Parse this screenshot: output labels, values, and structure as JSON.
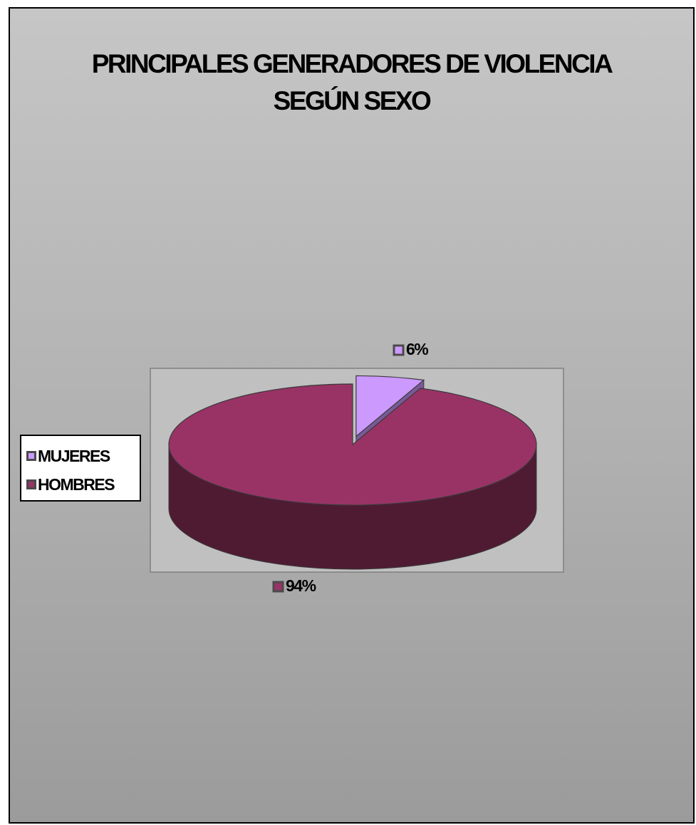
{
  "chart_data": {
    "type": "pie",
    "title_lines": [
      "PRINCIPALES GENERADORES DE VIOLENCIA",
      "SEGÚN SEXO"
    ],
    "three_d": true,
    "exploded_slice": "MUJERES",
    "legend_position": "left",
    "slices": [
      {
        "name": "MUJERES",
        "value": 6,
        "label": "6%",
        "color": "#cc99ff"
      },
      {
        "name": "HOMBRES",
        "value": 94,
        "label": "94%",
        "color": "#993366"
      }
    ]
  },
  "colors": {
    "plot_area": "#c0c0c0",
    "hombres_side": "#4f1b33",
    "mujeres_side": "#7a5a99"
  }
}
